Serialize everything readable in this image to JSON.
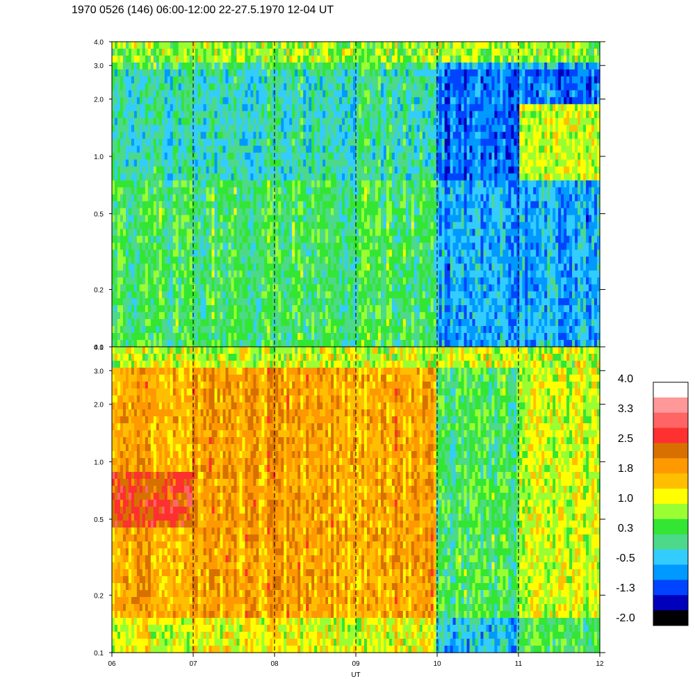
{
  "title": "1970 0526 (146) 06:00-12:00 22-27.5.1970  12-04 UT",
  "chart_data": {
    "type": "heatmap",
    "title": "1970 0526 (146) 06:00-12:00 22-27.5.1970  12-04 UT",
    "xlabel": "UT",
    "ylabel": "",
    "x_ticks": [
      "06",
      "07",
      "08",
      "09",
      "10",
      "11",
      "12"
    ],
    "x_range": [
      6,
      12
    ],
    "y_scale": "log",
    "y_range": [
      0.1,
      4.0
    ],
    "y_ticks": [
      "0.1",
      "0.2",
      "0.5",
      "1.0",
      "2.0",
      "3.0",
      "4.0"
    ],
    "y_tick_values": [
      0.1,
      0.2,
      0.5,
      1.0,
      2.0,
      3.0,
      4.0
    ],
    "hour_markers": [
      7,
      8,
      9,
      10,
      11
    ],
    "panels": [
      {
        "name": "upper",
        "dominant_level_by_hour": [
          0.3,
          0.3,
          0.3,
          0.3,
          -0.5,
          -0.5
        ],
        "enhancement": "1.0 near 1.0 after 11 UT"
      },
      {
        "name": "lower",
        "dominant_level_by_hour": [
          1.8,
          1.8,
          1.8,
          1.8,
          0.3,
          1.0
        ],
        "enhancement": "2.5 near 0.5 between 06 and 07 UT"
      }
    ],
    "colorbar": {
      "labels": [
        "4.0",
        "3.3",
        "2.5",
        "1.8",
        "1.0",
        "0.3",
        "-0.5",
        "-1.3",
        "-2.0"
      ],
      "range": [
        -2.0,
        4.0
      ],
      "colors_top_to_bottom": [
        "#ffffff",
        "#ff9898",
        "#ff6565",
        "#ff3030",
        "#d87000",
        "#ff9900",
        "#ffbf00",
        "#ffff00",
        "#99ff33",
        "#33e633",
        "#4dd98a",
        "#33ccff",
        "#0099ff",
        "#0044ff",
        "#0000bb",
        "#000000"
      ]
    }
  }
}
